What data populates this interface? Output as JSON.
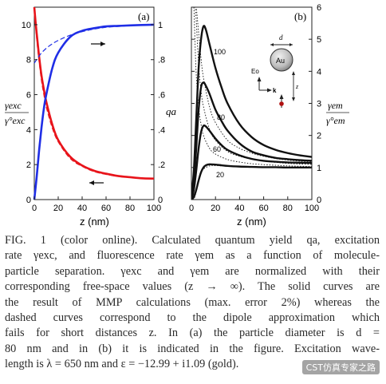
{
  "figure": {
    "panel_a": {
      "label": "(a)",
      "left_axis": {
        "ticks": [
          "10",
          "8",
          "6",
          "4",
          "2",
          "0"
        ],
        "label_num": "γexc",
        "label_den": "γ°exc"
      },
      "right_axis": {
        "ticks": [
          "1",
          ".8",
          ".6",
          ".4",
          ".2",
          "0"
        ],
        "label": "qa"
      },
      "x_axis": {
        "ticks": [
          "0",
          "20",
          "40",
          "60",
          "80",
          "100"
        ],
        "label": "z (nm)"
      }
    },
    "panel_b": {
      "label": "(b)",
      "right_axis": {
        "ticks": [
          "6",
          "5",
          "4",
          "3",
          "2",
          "1",
          "0"
        ],
        "label_num": "γem",
        "label_den": "γ°em"
      },
      "x_axis": {
        "ticks": [
          "0",
          "20",
          "40",
          "60",
          "80",
          "100"
        ],
        "label": "z (nm)"
      },
      "curve_labels": [
        "100",
        "80",
        "60",
        "20"
      ],
      "inset": {
        "d_label": "d",
        "sphere_label": "Au",
        "field_label": "Eo",
        "k_label": "k",
        "z_label": "z"
      }
    }
  },
  "chart_data": [
    {
      "type": "line",
      "panel": "(a)",
      "xlabel": "z (nm)",
      "xlim": [
        0,
        100
      ],
      "ylim_left": [
        0,
        11
      ],
      "ylim_right": [
        0,
        1.1
      ],
      "series": [
        {
          "color": "#e8141b",
          "axis": "left",
          "style": "solid",
          "x": [
            0,
            1,
            2,
            4,
            6,
            8,
            10,
            15,
            20,
            30,
            40,
            50,
            60,
            70,
            80,
            90,
            100
          ],
          "y": [
            11.2,
            10.2,
            9.5,
            8.2,
            7.1,
            6.3,
            5.6,
            4.3,
            3.4,
            2.45,
            1.95,
            1.65,
            1.48,
            1.35,
            1.28,
            1.22,
            1.2
          ]
        },
        {
          "color": "#e8141b",
          "axis": "left",
          "style": "dashed",
          "x": [
            0,
            2,
            4,
            6,
            8,
            10,
            15,
            20,
            30,
            40,
            50,
            60,
            70,
            80,
            90,
            100
          ],
          "y": [
            11.0,
            9.2,
            7.9,
            6.8,
            6.0,
            5.3,
            4.1,
            3.3,
            2.35,
            1.9,
            1.6,
            1.44,
            1.33,
            1.26,
            1.21,
            1.19
          ]
        },
        {
          "color": "#1f2ee6",
          "axis": "right",
          "style": "solid",
          "x": [
            0,
            2,
            4,
            6,
            8,
            10,
            15,
            20,
            30,
            40,
            50,
            60,
            70,
            80,
            90,
            100
          ],
          "y": [
            0.0,
            0.13,
            0.28,
            0.41,
            0.52,
            0.6,
            0.75,
            0.84,
            0.93,
            0.965,
            0.98,
            0.99,
            0.993,
            0.996,
            0.998,
            1.0
          ]
        },
        {
          "color": "#1f2ee6",
          "axis": "right",
          "style": "dashed",
          "x": [
            0,
            5,
            10,
            15,
            20,
            30,
            40,
            50,
            60,
            70,
            80,
            90,
            100
          ],
          "y": [
            0.78,
            0.83,
            0.865,
            0.89,
            0.91,
            0.94,
            0.96,
            0.975,
            0.985,
            0.99,
            0.995,
            0.998,
            1.0
          ]
        }
      ]
    },
    {
      "type": "line",
      "panel": "(b)",
      "xlabel": "z (nm)",
      "xlim": [
        0,
        100
      ],
      "ylim": [
        0,
        6
      ],
      "series": [
        {
          "name": "100",
          "style": "solid",
          "x": [
            0,
            2,
            4,
            6,
            8,
            10,
            12,
            15,
            20,
            25,
            30,
            40,
            50,
            60,
            70,
            80,
            90,
            100
          ],
          "y": [
            0.1,
            0.9,
            2.5,
            4.1,
            5.0,
            5.4,
            5.3,
            4.85,
            4.1,
            3.5,
            3.0,
            2.35,
            1.95,
            1.7,
            1.55,
            1.45,
            1.38,
            1.33
          ]
        },
        {
          "name": "80",
          "style": "solid",
          "x": [
            0,
            2,
            4,
            6,
            8,
            10,
            12,
            15,
            20,
            25,
            30,
            40,
            50,
            60,
            70,
            80,
            90,
            100
          ],
          "y": [
            0.0,
            0.5,
            1.6,
            2.8,
            3.5,
            3.65,
            3.55,
            3.3,
            2.8,
            2.45,
            2.15,
            1.75,
            1.5,
            1.38,
            1.3,
            1.26,
            1.23,
            1.21
          ]
        },
        {
          "name": "60",
          "style": "solid",
          "x": [
            0,
            2,
            4,
            6,
            8,
            10,
            12,
            15,
            20,
            25,
            30,
            40,
            50,
            60,
            70,
            80,
            90,
            100
          ],
          "y": [
            0.0,
            0.3,
            0.9,
            1.6,
            2.1,
            2.3,
            2.28,
            2.15,
            1.9,
            1.7,
            1.55,
            1.38,
            1.27,
            1.21,
            1.18,
            1.16,
            1.15,
            1.14
          ]
        },
        {
          "name": "20",
          "style": "solid",
          "x": [
            0,
            2,
            4,
            6,
            8,
            10,
            12,
            15,
            20,
            25,
            30,
            40,
            50,
            60,
            70,
            80,
            90,
            100
          ],
          "y": [
            0.0,
            0.08,
            0.3,
            0.6,
            0.85,
            1.0,
            1.07,
            1.1,
            1.09,
            1.07,
            1.05,
            1.03,
            1.02,
            1.01,
            1.01,
            1.0,
            1.0,
            1.0
          ]
        },
        {
          "style": "dotted",
          "x": [
            1,
            2,
            3,
            4,
            6,
            8,
            10,
            15,
            20,
            30,
            40,
            50,
            60,
            70,
            80,
            90,
            100
          ],
          "y": [
            6.0,
            6.0,
            6.0,
            6.0,
            5.2,
            4.4,
            3.8,
            2.9,
            2.4,
            1.85,
            1.6,
            1.45,
            1.35,
            1.28,
            1.23,
            1.2,
            1.18
          ]
        },
        {
          "style": "dotted",
          "x": [
            1,
            2,
            3,
            4,
            6,
            8,
            10,
            15,
            20,
            30,
            40,
            50,
            60,
            70,
            80,
            90,
            100
          ],
          "y": [
            6.0,
            6.0,
            6.0,
            5.6,
            4.2,
            3.4,
            2.9,
            2.2,
            1.85,
            1.5,
            1.35,
            1.26,
            1.2,
            1.16,
            1.13,
            1.11,
            1.1
          ]
        },
        {
          "style": "dotted",
          "x": [
            1,
            2,
            3,
            4,
            6,
            8,
            10,
            15,
            20,
            30,
            40,
            50,
            60,
            70,
            80,
            90,
            100
          ],
          "y": [
            6.0,
            6.0,
            4.9,
            3.9,
            2.9,
            2.35,
            2.0,
            1.6,
            1.42,
            1.25,
            1.17,
            1.12,
            1.09,
            1.07,
            1.05,
            1.04,
            1.03
          ]
        },
        {
          "style": "dotted",
          "x": [
            1,
            2,
            3,
            4,
            6,
            8,
            10,
            15,
            20,
            30,
            40,
            50,
            60,
            70,
            80,
            90,
            100
          ],
          "y": [
            0.0,
            0.02,
            0.1,
            0.25,
            0.55,
            0.8,
            0.95,
            1.05,
            1.06,
            1.04,
            1.03,
            1.02,
            1.01,
            1.01,
            1.0,
            1.0,
            1.0
          ]
        }
      ]
    }
  ],
  "caption": {
    "lines": [
      "FIG. 1 (color online).   Calculated quantum yield qa, excitation",
      "rate γexc, and fluorescence rate γem as a function of molecule-",
      "particle separation. γexc and γem are normalized with their",
      "corresponding free-space values (z → ∞). The solid curves are",
      "the result of MMP calculations (max. error 2%) whereas the",
      "dashed curves correspond to the dipole approximation which",
      "fails for short distances z. In (a) the particle diameter is d =",
      "80 nm and in (b) it is indicated in the figure. Excitation wave-",
      "length is λ = 650 nm and ε = −12.99 + i1.09 (gold)."
    ]
  },
  "watermark": "CST仿真专家之路"
}
